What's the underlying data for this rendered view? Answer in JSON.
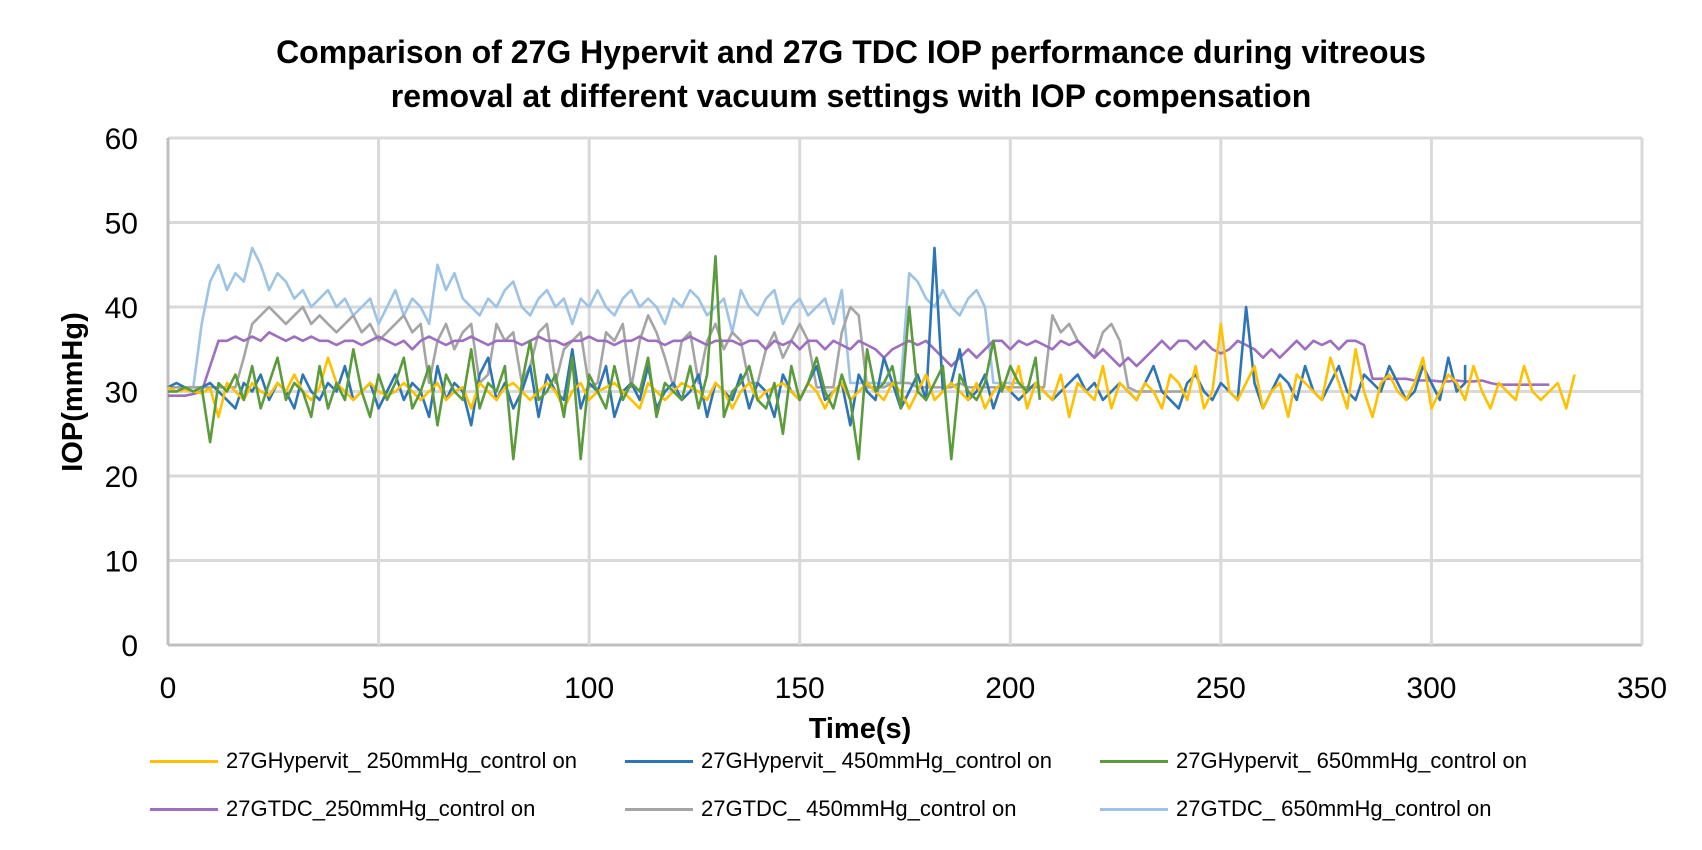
{
  "chart_data": {
    "type": "line",
    "title": "Comparison of 27G Hypervit and 27G TDC IOP performance during vitreous removal at different vacuum settings with IOP compensation",
    "title_lines": [
      "Comparison of 27G Hypervit and 27G TDC IOP performance during vitreous",
      "removal at different vacuum settings with IOP compensation"
    ],
    "xlabel": "Time(s)",
    "ylabel": "IOP(mmHg)",
    "xlim": [
      0,
      350
    ],
    "ylim": [
      0,
      60
    ],
    "xticks": [
      "0",
      "50",
      "100",
      "150",
      "200",
      "250",
      "300",
      "350"
    ],
    "yticks": [
      "0",
      "10",
      "20",
      "30",
      "40",
      "50",
      "60"
    ],
    "grid": true,
    "legend_position": "bottom",
    "series": [
      {
        "name": "27GHypervit_ 250mmHg_control on",
        "color": "#FFC000",
        "x_start": 0,
        "x_end": 350,
        "step": 2,
        "values": [
          30.5,
          30,
          30.2,
          30,
          29.8,
          30.4,
          27,
          31,
          30,
          29,
          31,
          30,
          29.5,
          31,
          30,
          32,
          30,
          29,
          30.5,
          34,
          31,
          30,
          29,
          30,
          31,
          30,
          29.5,
          30,
          31,
          30,
          29,
          30,
          31,
          29,
          30,
          30.5,
          28,
          31,
          30,
          29,
          30.5,
          31,
          30,
          29,
          30,
          31,
          30,
          28,
          30,
          31,
          29,
          30,
          30.5,
          31,
          30,
          29,
          28,
          31,
          30,
          29,
          30,
          31,
          30.5,
          30,
          29,
          31,
          30,
          28,
          30,
          31,
          29,
          30,
          30.5,
          31,
          30,
          29,
          31,
          30,
          28,
          30,
          31,
          29,
          30,
          31,
          30,
          29,
          31,
          30,
          28,
          30,
          32,
          29,
          30,
          31,
          30,
          29,
          31,
          28,
          30,
          31,
          30,
          33,
          28,
          31,
          30,
          29,
          32,
          27,
          31,
          30,
          29,
          33,
          28,
          31,
          30,
          29,
          31,
          30,
          28,
          32,
          31,
          29,
          33,
          28,
          30,
          38,
          30,
          29,
          31,
          33,
          28,
          30,
          31,
          27,
          32,
          31,
          30,
          29,
          34,
          31,
          28,
          35,
          30,
          27,
          31,
          32,
          30,
          29,
          31,
          34,
          28,
          30,
          32,
          31,
          29,
          33,
          30,
          28,
          31,
          30,
          29,
          33,
          30,
          29,
          30,
          31,
          28,
          32
        ]
      },
      {
        "name": "27GHypervit_ 450mmHg_control on",
        "color": "#2E75B6",
        "x_start": 0,
        "x_end": 308,
        "step": 2,
        "values": [
          30.5,
          31,
          30.5,
          30,
          30.5,
          31,
          30,
          29,
          28,
          31,
          30,
          32,
          29,
          31,
          30,
          28,
          32,
          30,
          29,
          31,
          30,
          33,
          29,
          30,
          31,
          28,
          30,
          32,
          29,
          31,
          30,
          27,
          33,
          29,
          31,
          30,
          26,
          32,
          34,
          29,
          31,
          28,
          30,
          33,
          27,
          32,
          30,
          29,
          35,
          28,
          31,
          30,
          33,
          27,
          30,
          31,
          29,
          33,
          28,
          30,
          31,
          29,
          30,
          32,
          27,
          31,
          30,
          29,
          32,
          28,
          31,
          30,
          27,
          32,
          30,
          29,
          31,
          33,
          29,
          30,
          31,
          26,
          32,
          30,
          29,
          34,
          31,
          28,
          30,
          32,
          29,
          47,
          30,
          31,
          35,
          29,
          30,
          32,
          28,
          31,
          30,
          29,
          30,
          31,
          30,
          29,
          30,
          31,
          32,
          30,
          31,
          29,
          30,
          31,
          30,
          29,
          31,
          33,
          30,
          29,
          28,
          31,
          32,
          30,
          29,
          31,
          30,
          29,
          40,
          31,
          28,
          30,
          32,
          31,
          29,
          33,
          30,
          29,
          31,
          33,
          30,
          29,
          32,
          31,
          30,
          33,
          31,
          29,
          30,
          33,
          31,
          29,
          34,
          30,
          31,
          33,
          32
        ]
      },
      {
        "name": "27GHypervit_ 650mmHg_control on",
        "color": "#5B9B3C",
        "x_start": 0,
        "x_end": 207,
        "step": 2,
        "values": [
          30,
          30,
          30.5,
          30,
          30.5,
          24,
          31,
          30,
          32,
          29,
          33,
          28,
          31,
          34,
          29,
          31,
          30,
          27,
          33,
          28,
          31,
          29,
          35,
          30,
          27,
          32,
          29,
          31,
          34,
          28,
          30,
          33,
          26,
          32,
          30,
          29,
          35,
          28,
          31,
          30,
          33,
          22,
          31,
          36,
          29,
          30,
          32,
          27,
          34,
          22,
          32,
          30,
          28,
          33,
          29,
          31,
          30,
          34,
          27,
          31,
          30,
          29,
          33,
          28,
          32,
          46,
          27,
          30,
          31,
          33,
          29,
          28,
          31,
          25,
          33,
          29,
          31,
          34,
          30,
          28,
          32,
          29,
          22,
          35,
          30,
          31,
          33,
          28,
          40,
          30,
          29,
          31,
          33,
          22,
          32,
          30,
          29,
          31,
          36,
          30,
          33,
          31,
          30,
          34,
          29
        ]
      },
      {
        "name": "27GTDC_250mmHg_control on",
        "color": "#9E6EBF",
        "x_start": 0,
        "x_end": 337,
        "step": 2,
        "values": [
          29.5,
          29.5,
          29.5,
          29.7,
          30,
          33,
          36,
          36,
          36.5,
          36,
          36.5,
          36,
          37,
          36.5,
          36,
          36.5,
          36,
          36.5,
          36,
          36,
          35.5,
          36,
          36,
          35.5,
          36,
          36.5,
          36,
          35.5,
          36,
          35,
          36,
          36.5,
          36,
          35.5,
          36,
          36,
          36.5,
          36,
          35.5,
          36,
          36,
          36,
          35.5,
          36,
          36.5,
          36,
          36,
          35.5,
          36,
          36,
          36.5,
          36,
          36,
          35.5,
          36,
          36,
          36.5,
          36,
          36,
          35.5,
          36,
          36,
          36.5,
          36,
          35.5,
          36,
          36,
          36,
          35.5,
          36,
          36,
          35,
          36,
          35.5,
          36,
          35,
          36,
          36,
          35,
          36,
          35.5,
          35,
          36,
          35.5,
          35,
          34,
          35,
          35.5,
          36,
          35.5,
          36,
          35,
          34,
          33,
          34,
          35,
          34,
          35,
          36,
          36,
          35,
          36,
          35.5,
          36,
          35.5,
          35,
          36,
          35.5,
          36,
          35,
          34,
          35,
          34,
          33,
          34,
          33,
          34,
          35,
          36,
          35,
          36,
          36,
          35,
          36,
          35,
          34.5,
          35,
          36,
          35.5,
          35,
          34,
          35,
          34,
          35,
          36,
          35,
          36,
          35.5,
          36,
          35,
          36,
          36,
          35.5,
          31.5,
          31.5,
          31.5,
          31.5,
          31.5,
          31.3,
          31.3,
          31.3,
          31.2,
          31.2,
          31.3,
          31.2,
          31.2,
          31.3,
          31,
          30.8,
          30.8,
          30.8,
          30.8,
          30.8,
          30.8,
          30.8
        ]
      },
      {
        "name": "27GTDC_ 450mmHg_control on",
        "color": "#A5A5A5",
        "x_start": 0,
        "x_end": 242,
        "step": 2,
        "values": [
          30.5,
          30.5,
          30.5,
          30.5,
          30.5,
          30.5,
          30.5,
          30.5,
          30.5,
          34,
          38,
          39,
          40,
          39,
          38,
          39,
          40,
          38,
          39,
          38,
          37,
          38,
          39,
          37,
          38,
          36,
          37,
          38,
          39,
          37,
          38,
          31,
          36,
          38,
          35,
          37,
          38,
          31,
          32,
          38,
          36,
          37,
          31,
          33,
          37,
          38,
          31,
          35,
          36,
          37,
          30.5,
          31,
          37,
          36,
          38,
          30.5,
          36,
          39,
          37,
          34,
          30.5,
          36,
          37,
          31,
          36,
          38,
          35,
          37,
          36,
          31,
          31,
          35,
          37,
          34,
          36,
          38,
          36,
          30.5,
          30.5,
          30.5,
          37,
          40,
          39,
          30.5,
          30.5,
          30.5,
          31,
          31,
          31,
          30.5,
          30.5,
          30.5,
          30.5,
          30.5,
          31,
          30.5,
          30.5,
          30.5,
          30.5,
          30.5,
          30.5,
          30.5,
          30.5,
          30.5,
          30.5,
          39,
          37,
          38,
          36,
          35,
          34,
          37,
          38,
          36,
          30.5,
          30,
          30,
          30,
          30,
          30,
          30,
          30,
          30,
          30,
          30
        ]
      },
      {
        "name": "27GTDC_ 650mmHg_control on",
        "color": "#9DC3E6",
        "x_start": 0,
        "x_end": 203,
        "step": 2,
        "values": [
          30.5,
          30.5,
          30.5,
          30.5,
          38,
          43,
          45,
          42,
          44,
          43,
          47,
          45,
          42,
          44,
          43,
          41,
          42,
          40,
          41,
          42,
          40,
          41,
          39,
          40,
          41,
          38,
          40,
          42,
          39,
          41,
          40,
          38,
          45,
          42,
          44,
          41,
          40,
          39,
          41,
          40,
          42,
          43,
          40,
          39,
          41,
          42,
          40,
          41,
          38,
          41,
          40,
          42,
          40,
          39,
          41,
          42,
          40,
          41,
          40,
          38,
          41,
          40,
          42,
          41,
          39,
          40,
          41,
          37,
          42,
          40,
          39,
          41,
          42,
          38,
          40,
          41,
          39,
          40,
          41,
          38,
          42,
          31,
          31,
          31,
          31,
          31,
          31,
          31,
          44,
          43,
          41,
          40,
          42,
          40,
          39,
          41,
          42,
          40,
          31,
          31,
          31,
          31,
          31,
          31,
          30.5,
          30.5
        ]
      }
    ]
  }
}
